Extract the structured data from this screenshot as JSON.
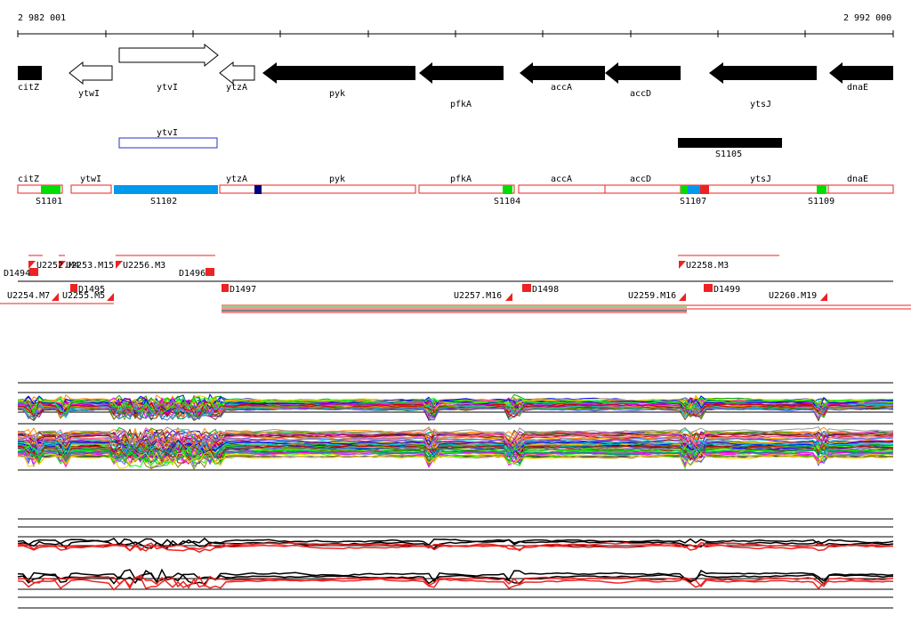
{
  "ruler": {
    "start_label": "2 982 001",
    "end_label": "2 992 000"
  },
  "genes": [
    {
      "label": "citZ",
      "fill": "black",
      "dir": "left"
    },
    {
      "label": "ytwI",
      "fill": "white",
      "dir": "left"
    },
    {
      "label": "ytvI",
      "fill": "white",
      "dir": "right"
    },
    {
      "label": "ytzA",
      "fill": "white",
      "dir": "left"
    },
    {
      "label": "pyk",
      "fill": "black",
      "dir": "left"
    },
    {
      "label": "pfkA",
      "fill": "black",
      "dir": "left"
    },
    {
      "label": "accA",
      "fill": "black",
      "dir": "left"
    },
    {
      "label": "accD",
      "fill": "black",
      "dir": "left"
    },
    {
      "label": "ytsJ",
      "fill": "black",
      "dir": "left"
    },
    {
      "label": "dnaE",
      "fill": "black",
      "dir": "left"
    }
  ],
  "segments": [
    {
      "label": "ytvI",
      "style": "outline-blue"
    },
    {
      "label": "S1105",
      "style": "solid-black"
    }
  ],
  "track_genes": [
    {
      "label": "citZ"
    },
    {
      "label": "ytwI"
    },
    {
      "label": "ytzA"
    },
    {
      "label": "pyk"
    },
    {
      "label": "pfkA"
    },
    {
      "label": "accA"
    },
    {
      "label": "accD"
    },
    {
      "label": "ytsJ"
    },
    {
      "label": "dnaE"
    }
  ],
  "sites": [
    {
      "label": "S1101",
      "color": "#00dd00"
    },
    {
      "label": "S1102",
      "color": "#0099ee"
    },
    {
      "label": "S1104",
      "color": "#00dd00"
    },
    {
      "label": "S1107",
      "color": "#00dd00"
    },
    {
      "label": "S1109",
      "color": "#00dd00"
    }
  ],
  "markers": [
    {
      "label": "D1494"
    },
    {
      "label": "U2252.M4"
    },
    {
      "label": "U2253.M15"
    },
    {
      "label": "U2256.M3"
    },
    {
      "label": "D1496"
    },
    {
      "label": "U2258.M3"
    },
    {
      "label": "U2254.M7"
    },
    {
      "label": "U2255.M5"
    },
    {
      "label": "D1495"
    },
    {
      "label": "D1497"
    },
    {
      "label": "U2257.M16"
    },
    {
      "label": "D1498"
    },
    {
      "label": "U2259.M16"
    },
    {
      "label": "D1499"
    },
    {
      "label": "U2260.M19"
    }
  ],
  "colors": {
    "gene": "#000000",
    "track_outline": "#ee2222",
    "site_red": "#ee2222",
    "site_navy": "#000080",
    "outline_blue": "#2233cc"
  }
}
